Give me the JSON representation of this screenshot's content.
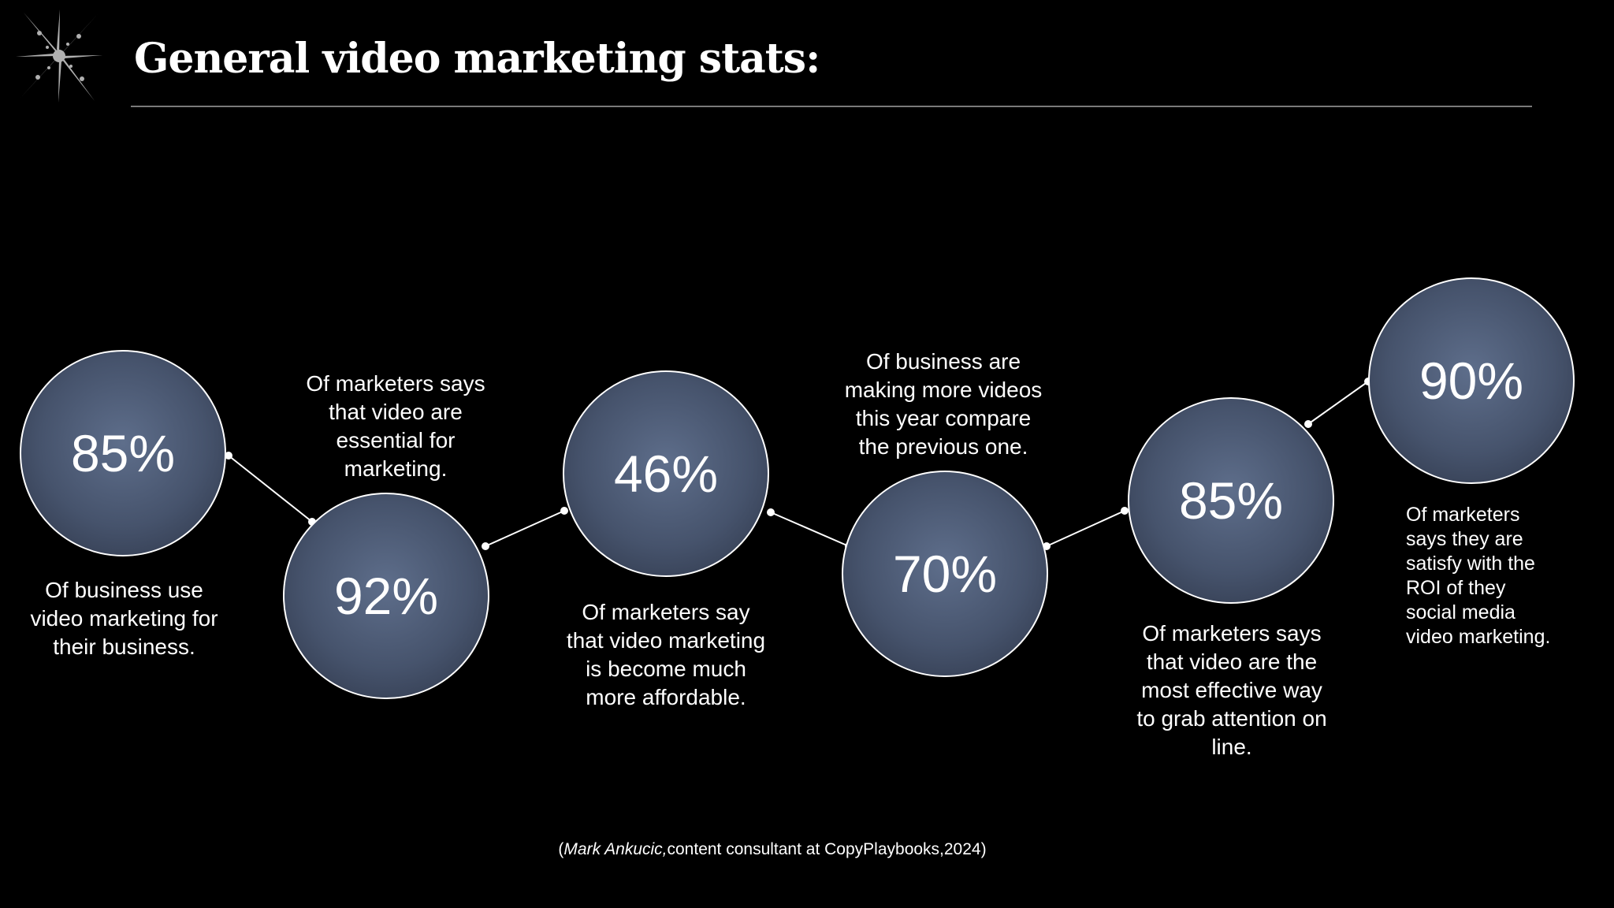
{
  "title": "General video marketing stats:",
  "stats": [
    {
      "value": "85%",
      "description": [
        "Of business use",
        "video marketing for",
        "their business."
      ]
    },
    {
      "value": "92%",
      "description": [
        "Of marketers says",
        "that video are",
        "essential for",
        "marketing."
      ]
    },
    {
      "value": "46%",
      "description": [
        "Of marketers say",
        "that video marketing",
        "is become much",
        "more affordable."
      ]
    },
    {
      "value": "70%",
      "description": [
        "Of business are",
        "making more videos",
        "this year compare",
        "the previous one."
      ]
    },
    {
      "value": "85%",
      "description": [
        "Of marketers says",
        "that video are the",
        "most effective way",
        "to grab attention on",
        "line."
      ]
    },
    {
      "value": "90%",
      "description": [
        "Of marketers",
        "says they are",
        "satisfy with the",
        "ROI of they",
        "social media",
        "video marketing."
      ]
    }
  ],
  "source": {
    "open": "(",
    "author": "Mark Ankucic,",
    "rest": "content consultant at CopyPlaybooks,2024)"
  },
  "colors": {
    "background": "#000000",
    "circle_fill": "#4b5872",
    "circle_stroke": "#ffffff",
    "text": "#ffffff"
  },
  "icons": [
    "sparkle-logo-icon"
  ]
}
